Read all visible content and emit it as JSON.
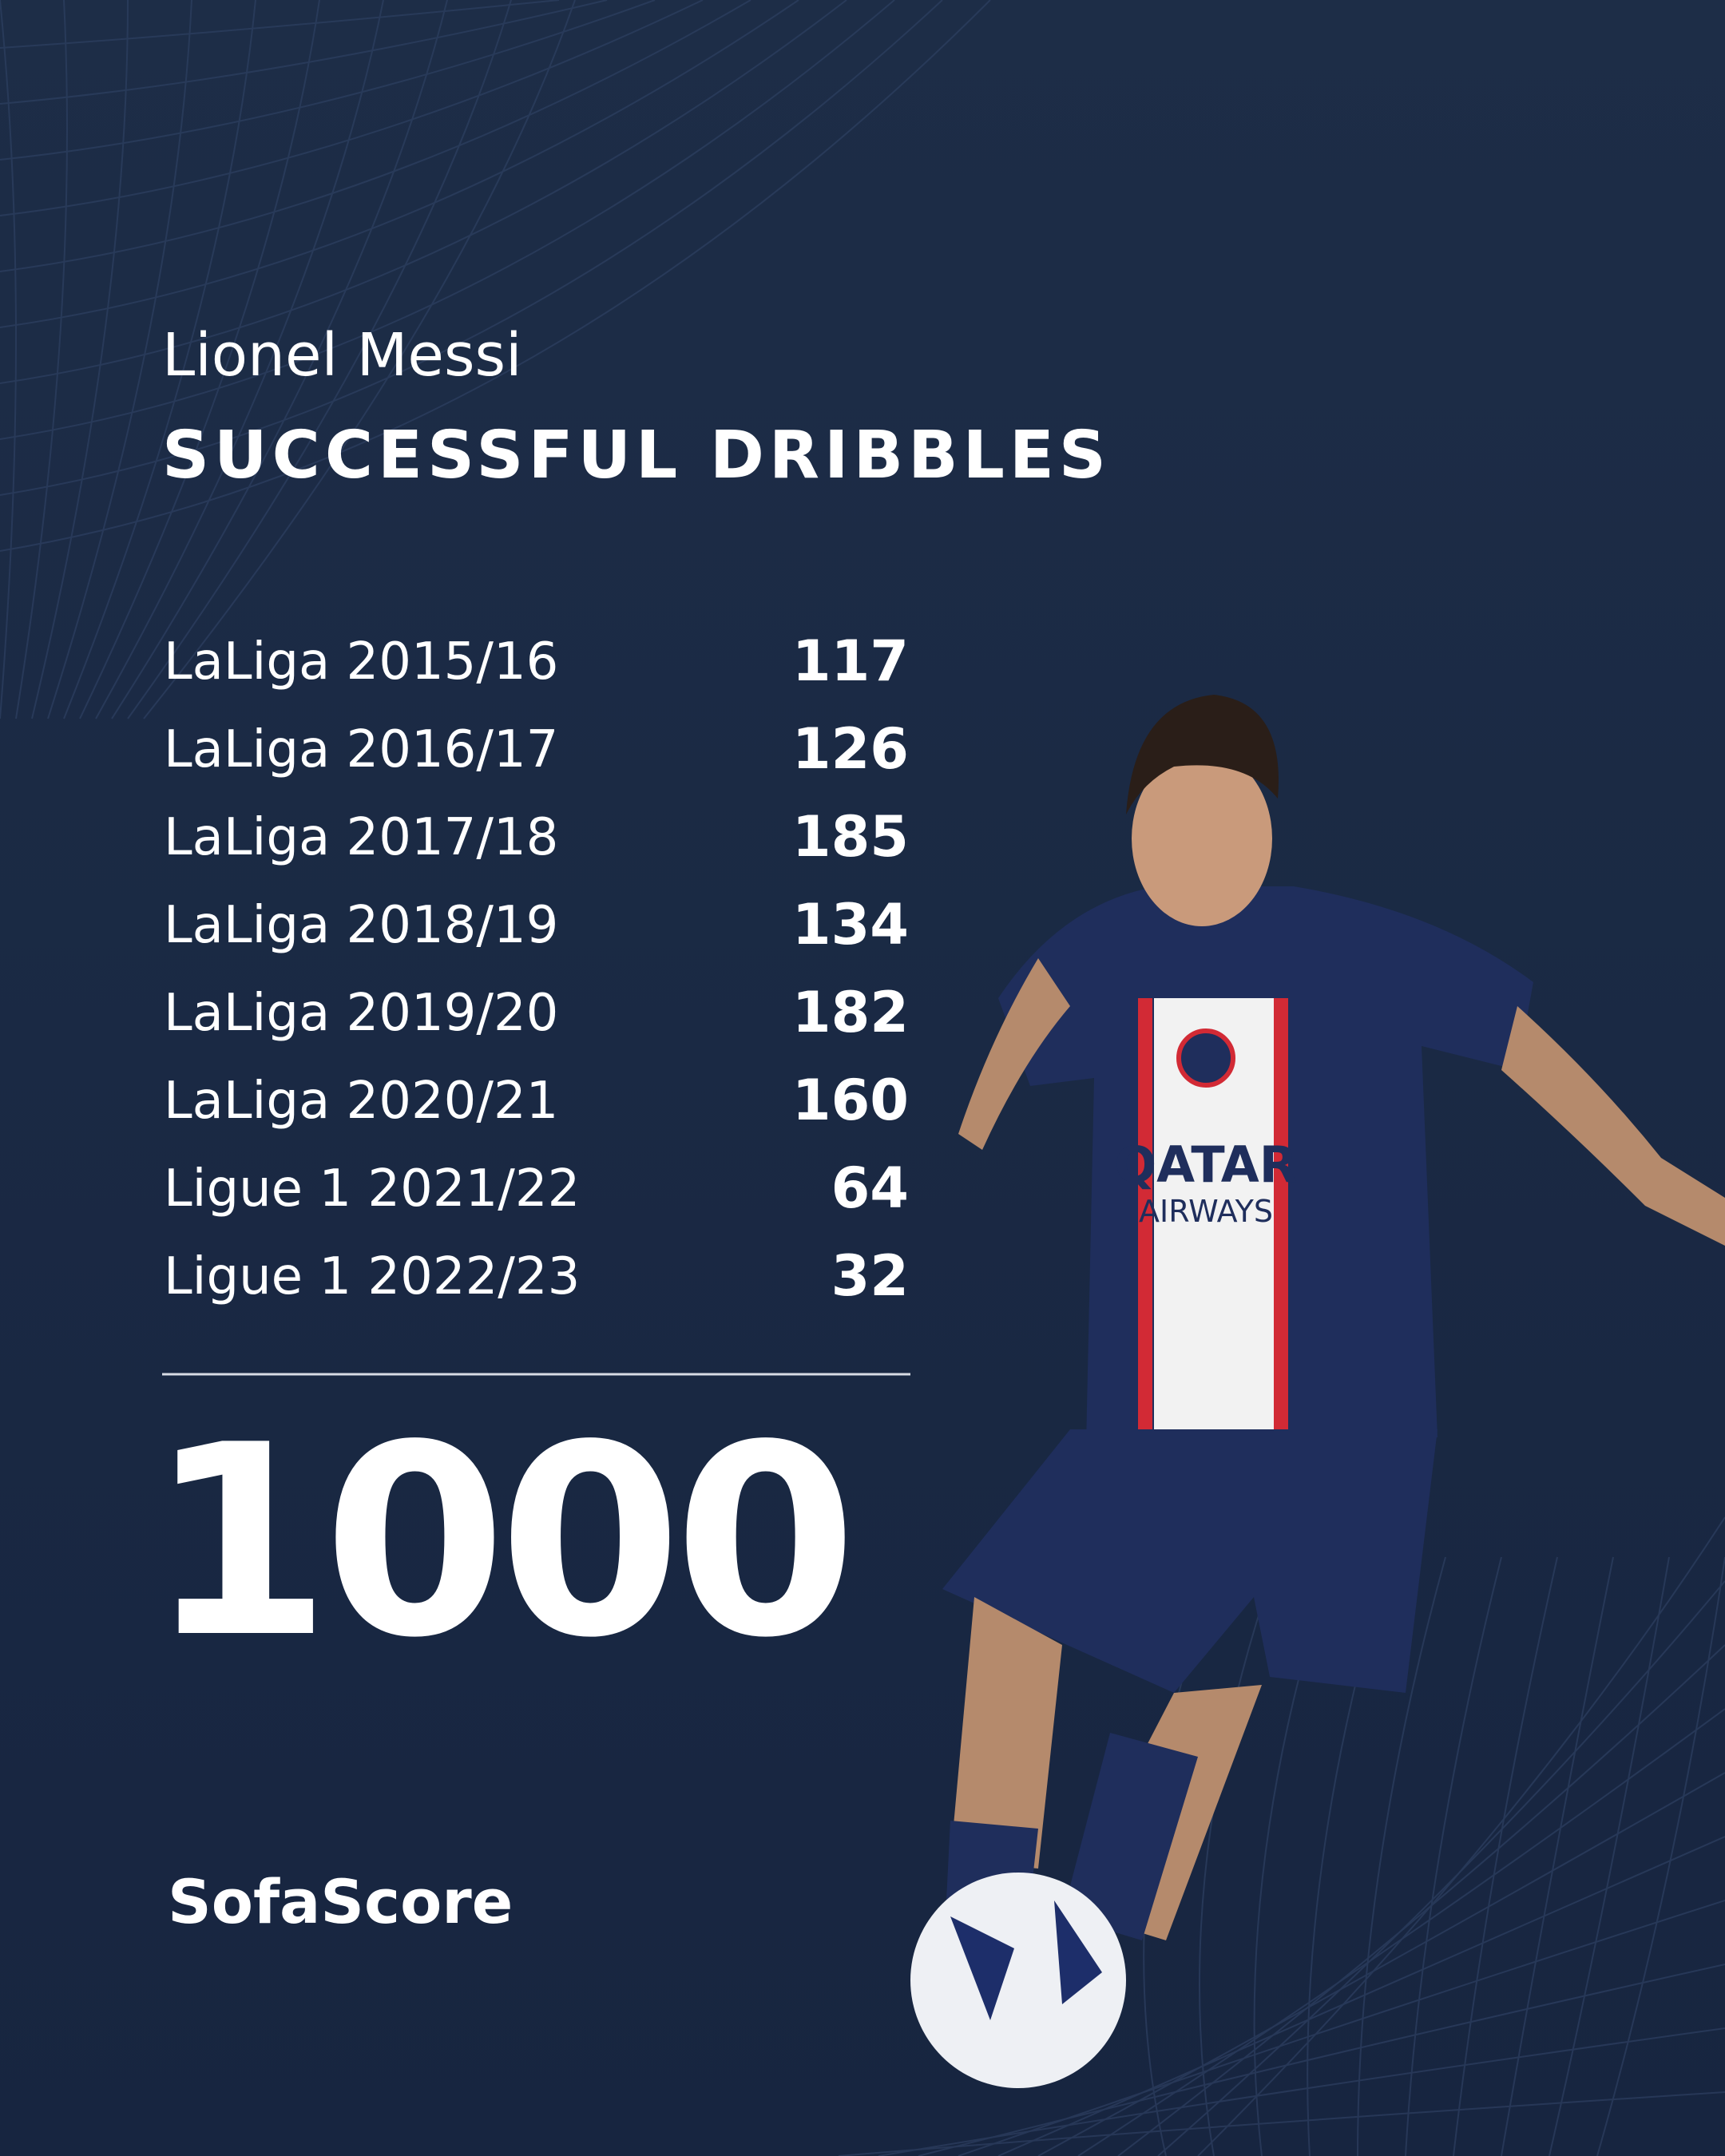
{
  "player": "Lionel Messi",
  "title": "SUCCESSFUL DRIBBLES",
  "rows": [
    {
      "label": "LaLiga 2015/16",
      "value": 117
    },
    {
      "label": "LaLiga 2016/17",
      "value": 126
    },
    {
      "label": "LaLiga 2017/18",
      "value": 185
    },
    {
      "label": "LaLiga 2018/19",
      "value": 134
    },
    {
      "label": "LaLiga 2019/20",
      "value": 182
    },
    {
      "label": "LaLiga 2020/21",
      "value": 160
    },
    {
      "label": "Ligue 1 2021/22",
      "value": 64
    },
    {
      "label": "Ligue 1 2022/23",
      "value": 32
    }
  ],
  "total": 1000,
  "brand": "SofaScore"
}
